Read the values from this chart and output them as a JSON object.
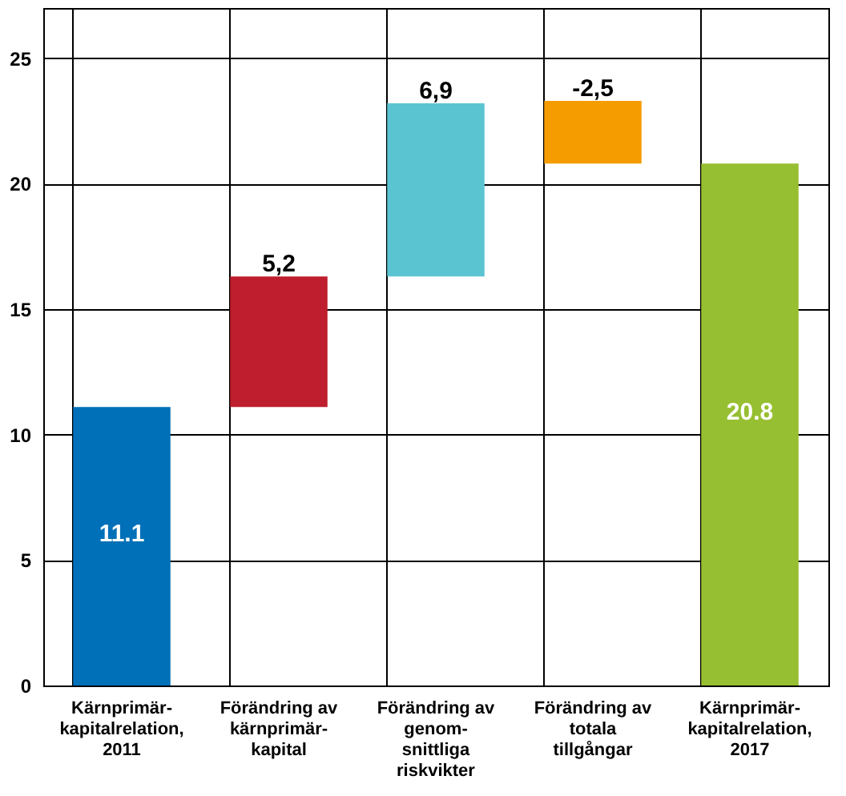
{
  "chart_data": {
    "type": "bar",
    "categories": [
      "Kärnprimär-\nkapitalrelation,\n2011",
      "Förändring av\nkärnprimär-\nkapital",
      "Förändring av\ngenom-\nsnittliga\nriskvikter",
      "Förändring av\ntotala\ntillgångar",
      "Kärnprimär-\nkapitalrelation,\n2017"
    ],
    "values": [
      11.1,
      5.2,
      6.9,
      -2.5,
      20.8
    ],
    "base": [
      0,
      11.1,
      16.3,
      23.3,
      0
    ],
    "colors": [
      "#0070b8",
      "#be1e2d",
      "#5bc4d1",
      "#f59c00",
      "#96bf31"
    ],
    "value_labels": [
      "11.1",
      "5,2",
      "6,9",
      "-2,5",
      "20.8"
    ],
    "ylim": [
      0,
      27
    ],
    "yticks": [
      0,
      5,
      10,
      15,
      20,
      25
    ],
    "grid": true
  }
}
